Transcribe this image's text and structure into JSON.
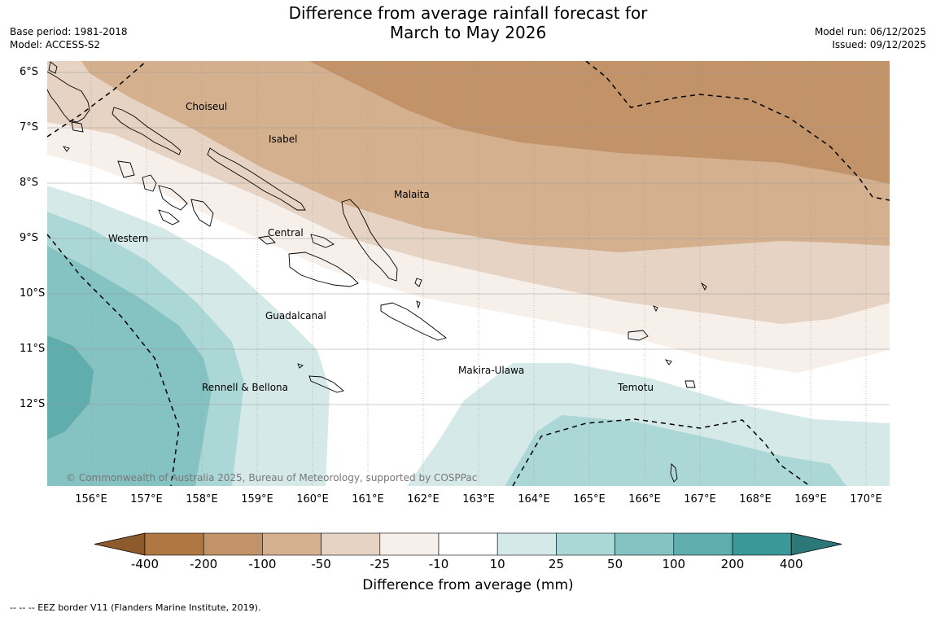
{
  "title_line1": "Difference from average rainfall forecast for",
  "title_line2": "March to May 2026",
  "base_period": "Base period: 1981-2018",
  "model": "Model: ACCESS-S2",
  "model_run": "Model run: 06/12/2025",
  "issued": "Issued: 09/12/2025",
  "copyright": "© Commonwealth of Australia 2025, Bureau of Meteorology, supported by COSPPac",
  "lat_labels": [
    "6°S",
    "7°S",
    "8°S",
    "9°S",
    "10°S",
    "11°S",
    "12°S"
  ],
  "lon_labels": [
    "156°E",
    "157°E",
    "158°E",
    "159°E",
    "160°E",
    "161°E",
    "162°E",
    "163°E",
    "164°E",
    "165°E",
    "166°E",
    "167°E",
    "168°E",
    "169°E",
    "170°E"
  ],
  "regions": [
    "Choiseul",
    "Isabel",
    "Malaita",
    "Western",
    "Central",
    "Guadalcanal",
    "Makira-Ulawa",
    "Temotu",
    "Rennell & Bellona"
  ],
  "colorbar": {
    "title": "Difference from average (mm)",
    "ticks": [
      "-400",
      "-200",
      "-100",
      "-50",
      "-25",
      "-10",
      "10",
      "25",
      "50",
      "100",
      "200",
      "400"
    ],
    "colors": [
      "#8c5a2c",
      "#af7741",
      "#c29368",
      "#d4b08f",
      "#e6d3c3",
      "#f6efea",
      "#ffffff",
      "#d5e9e8",
      "#acd7d7",
      "#85c2c2",
      "#5fadad",
      "#3a9898",
      "#2c7878"
    ]
  },
  "footnote": "-- -- -- EEZ border V11 (Flanders Marine Institute, 2019)."
}
